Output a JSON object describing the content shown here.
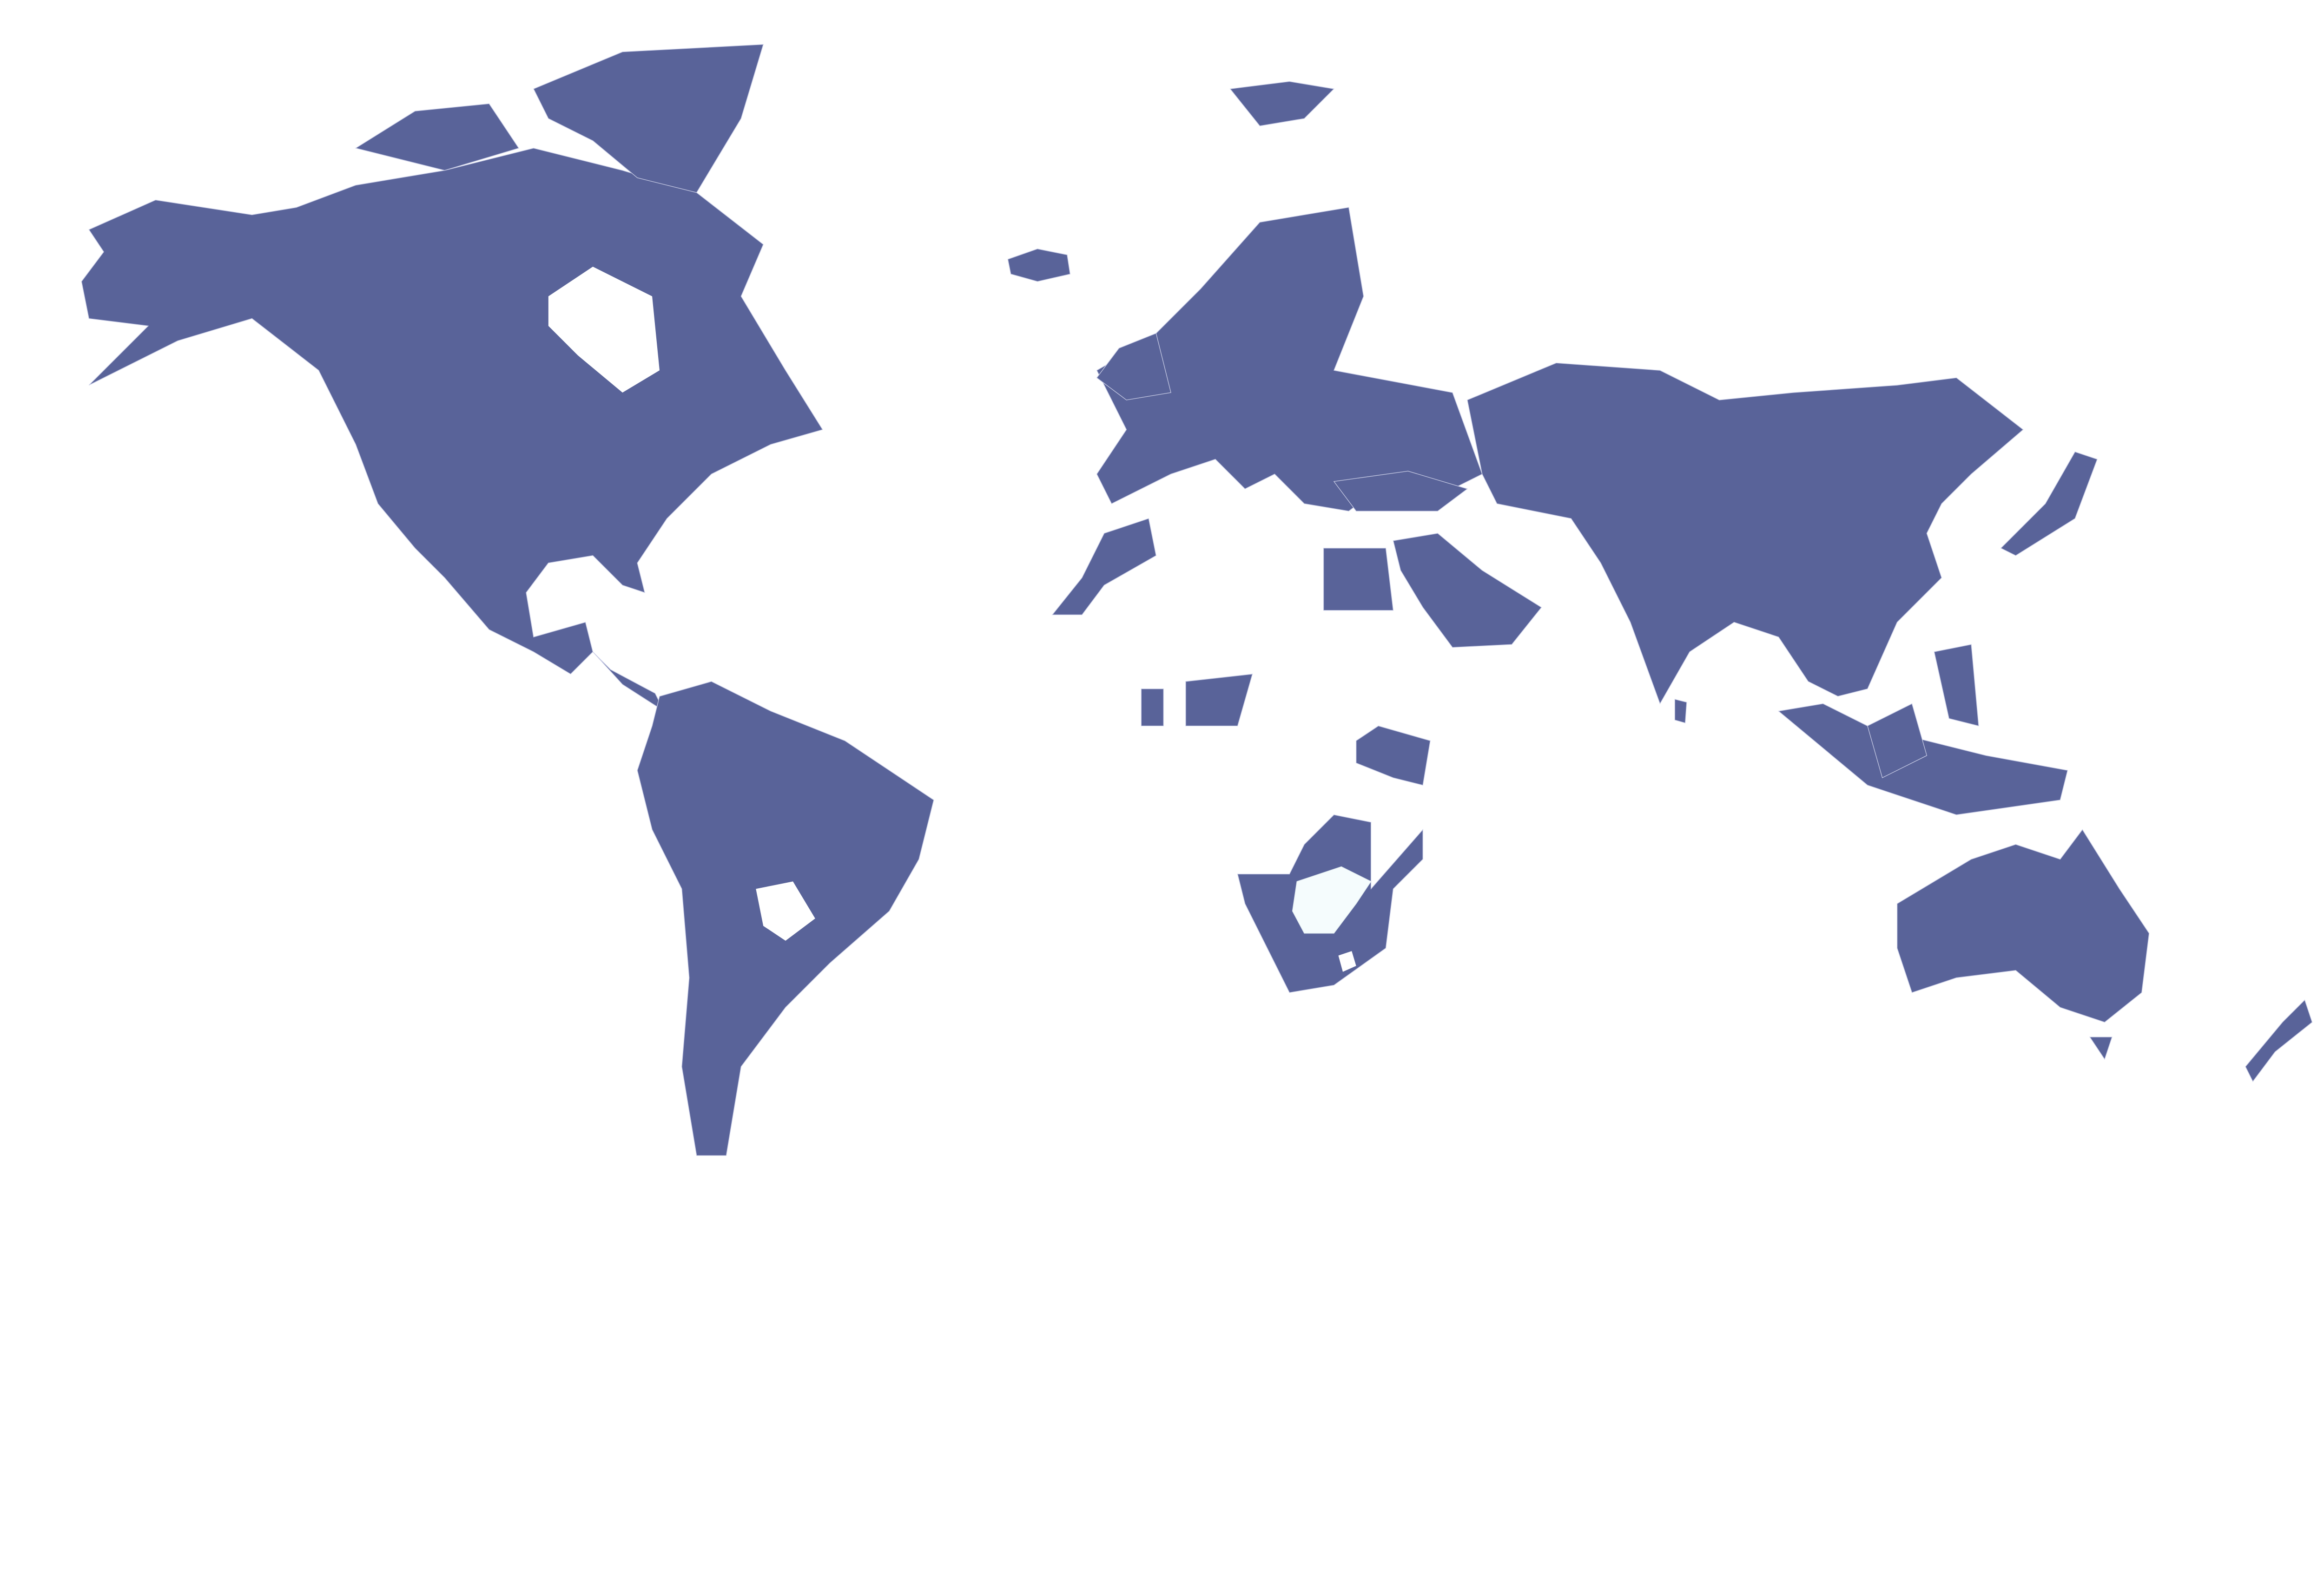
{
  "map": {
    "type": "choropleth",
    "projection": "world",
    "colors": {
      "filled": "#596399",
      "light": "#f5fcfd",
      "no_data": "#ffffff",
      "border": "#c9cde6"
    },
    "legend": null
  }
}
